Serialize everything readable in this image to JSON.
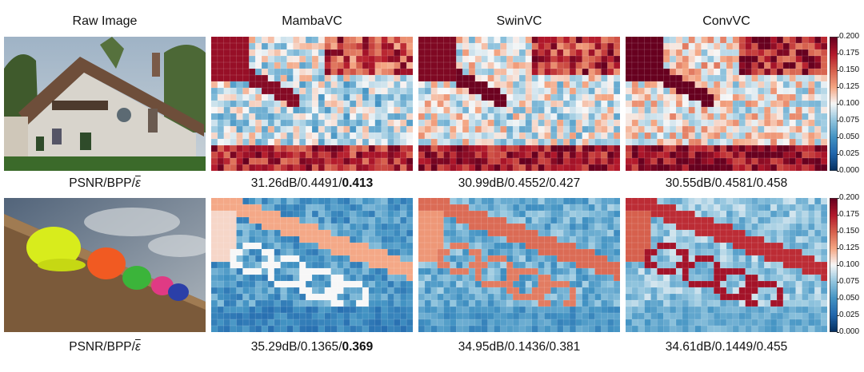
{
  "columns": [
    "Raw Image",
    "MambaVC",
    "SwinVC",
    "ConvVC"
  ],
  "chart_data": {
    "type": "heatmap",
    "colormap": "RdBu_r",
    "vmin": 0.0,
    "vmax": 0.2,
    "colorbar_ticks": [
      "0.200",
      "0.175",
      "0.150",
      "0.125",
      "0.100",
      "0.075",
      "0.050",
      "0.025",
      "0.000"
    ],
    "rows": [
      {
        "scene": "house",
        "metric_label": "PSNR/BPP/",
        "metric_symbol": "ε",
        "results": [
          {
            "model": "MambaVC",
            "psnr": "31.26dB",
            "bpp": "0.4491",
            "err": "0.413",
            "best": true
          },
          {
            "model": "SwinVC",
            "psnr": "30.99dB",
            "bpp": "0.4552",
            "err": "0.427",
            "best": false
          },
          {
            "model": "ConvVC",
            "psnr": "30.55dB",
            "bpp": "0.4581",
            "err": "0.458",
            "best": false
          }
        ]
      },
      {
        "scene": "hats",
        "metric_label": "PSNR/BPP/",
        "metric_symbol": "ε",
        "results": [
          {
            "model": "MambaVC",
            "psnr": "35.29dB",
            "bpp": "0.1365",
            "err": "0.369",
            "best": true
          },
          {
            "model": "SwinVC",
            "psnr": "34.95dB",
            "bpp": "0.1436",
            "err": "0.381",
            "best": false
          },
          {
            "model": "ConvVC",
            "psnr": "34.61dB",
            "bpp": "0.1449",
            "err": "0.455",
            "best": false
          }
        ]
      }
    ]
  }
}
